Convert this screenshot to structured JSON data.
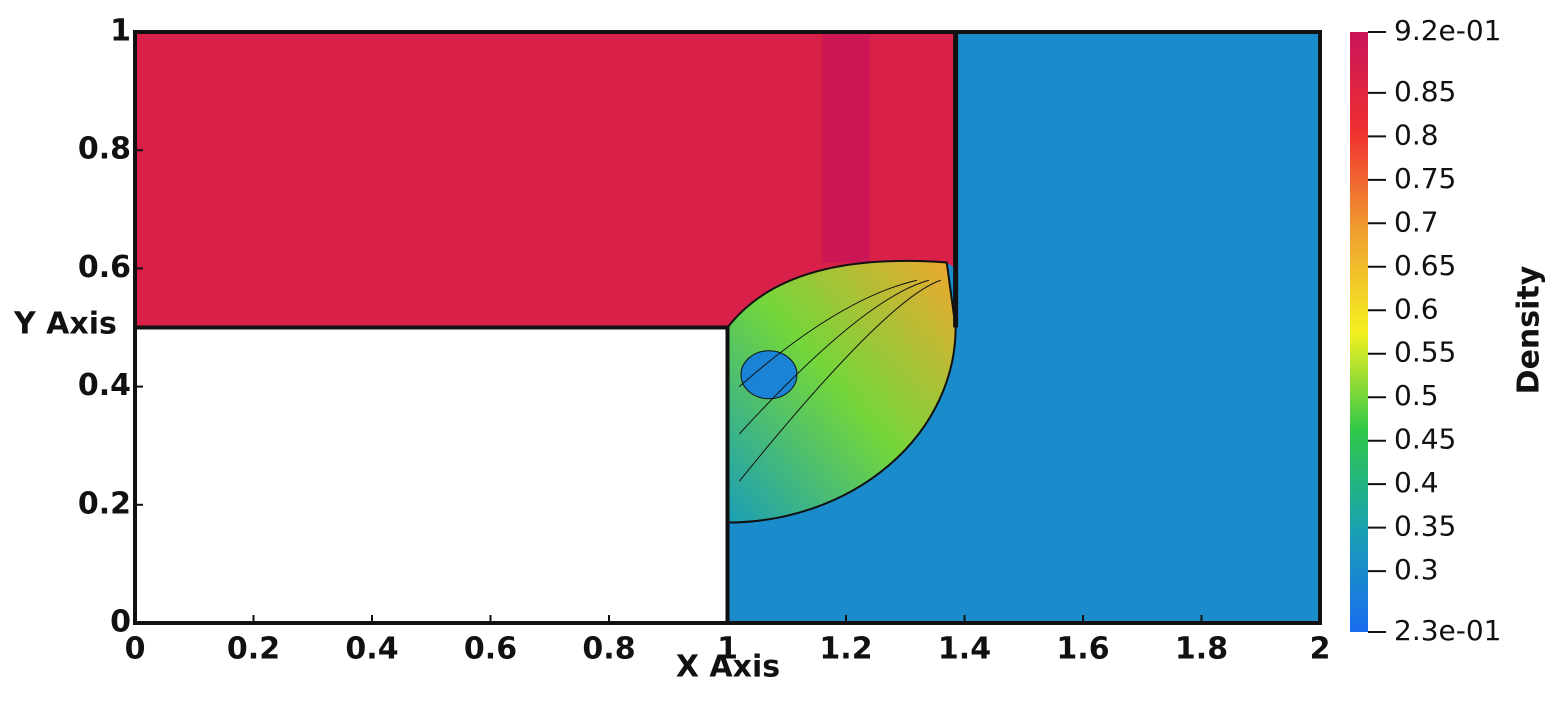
{
  "chart_data": {
    "type": "contour",
    "xlabel": "X Axis",
    "ylabel": "Y Axis",
    "xlim": [
      0,
      2
    ],
    "ylim": [
      0,
      1
    ],
    "xticks": [
      0,
      0.2,
      0.4,
      0.6,
      0.8,
      1,
      1.2,
      1.4,
      1.6,
      1.8,
      2
    ],
    "yticks": [
      0,
      0.2,
      0.4,
      0.6,
      0.8,
      1
    ],
    "colorbar": {
      "label": "Density",
      "lim": [
        0.23,
        0.92
      ],
      "ticks": [
        {
          "value": 0.92,
          "label": "9.2e-01"
        },
        0.85,
        0.8,
        0.75,
        0.7,
        0.65,
        0.6,
        0.55,
        0.5,
        0.45,
        0.4,
        0.35,
        0.3,
        {
          "value": 0.23,
          "label": "2.3e-01"
        }
      ],
      "colors": [
        "#1a6cf0",
        "#1aa0b4",
        "#2ec84a",
        "#f4f020",
        "#f0a030",
        "#f03030",
        "#c8145a"
      ]
    },
    "field": {
      "values": [
        0.3,
        0.87,
        0.92,
        0.34,
        0.5,
        0.68,
        0.28
      ]
    }
  }
}
